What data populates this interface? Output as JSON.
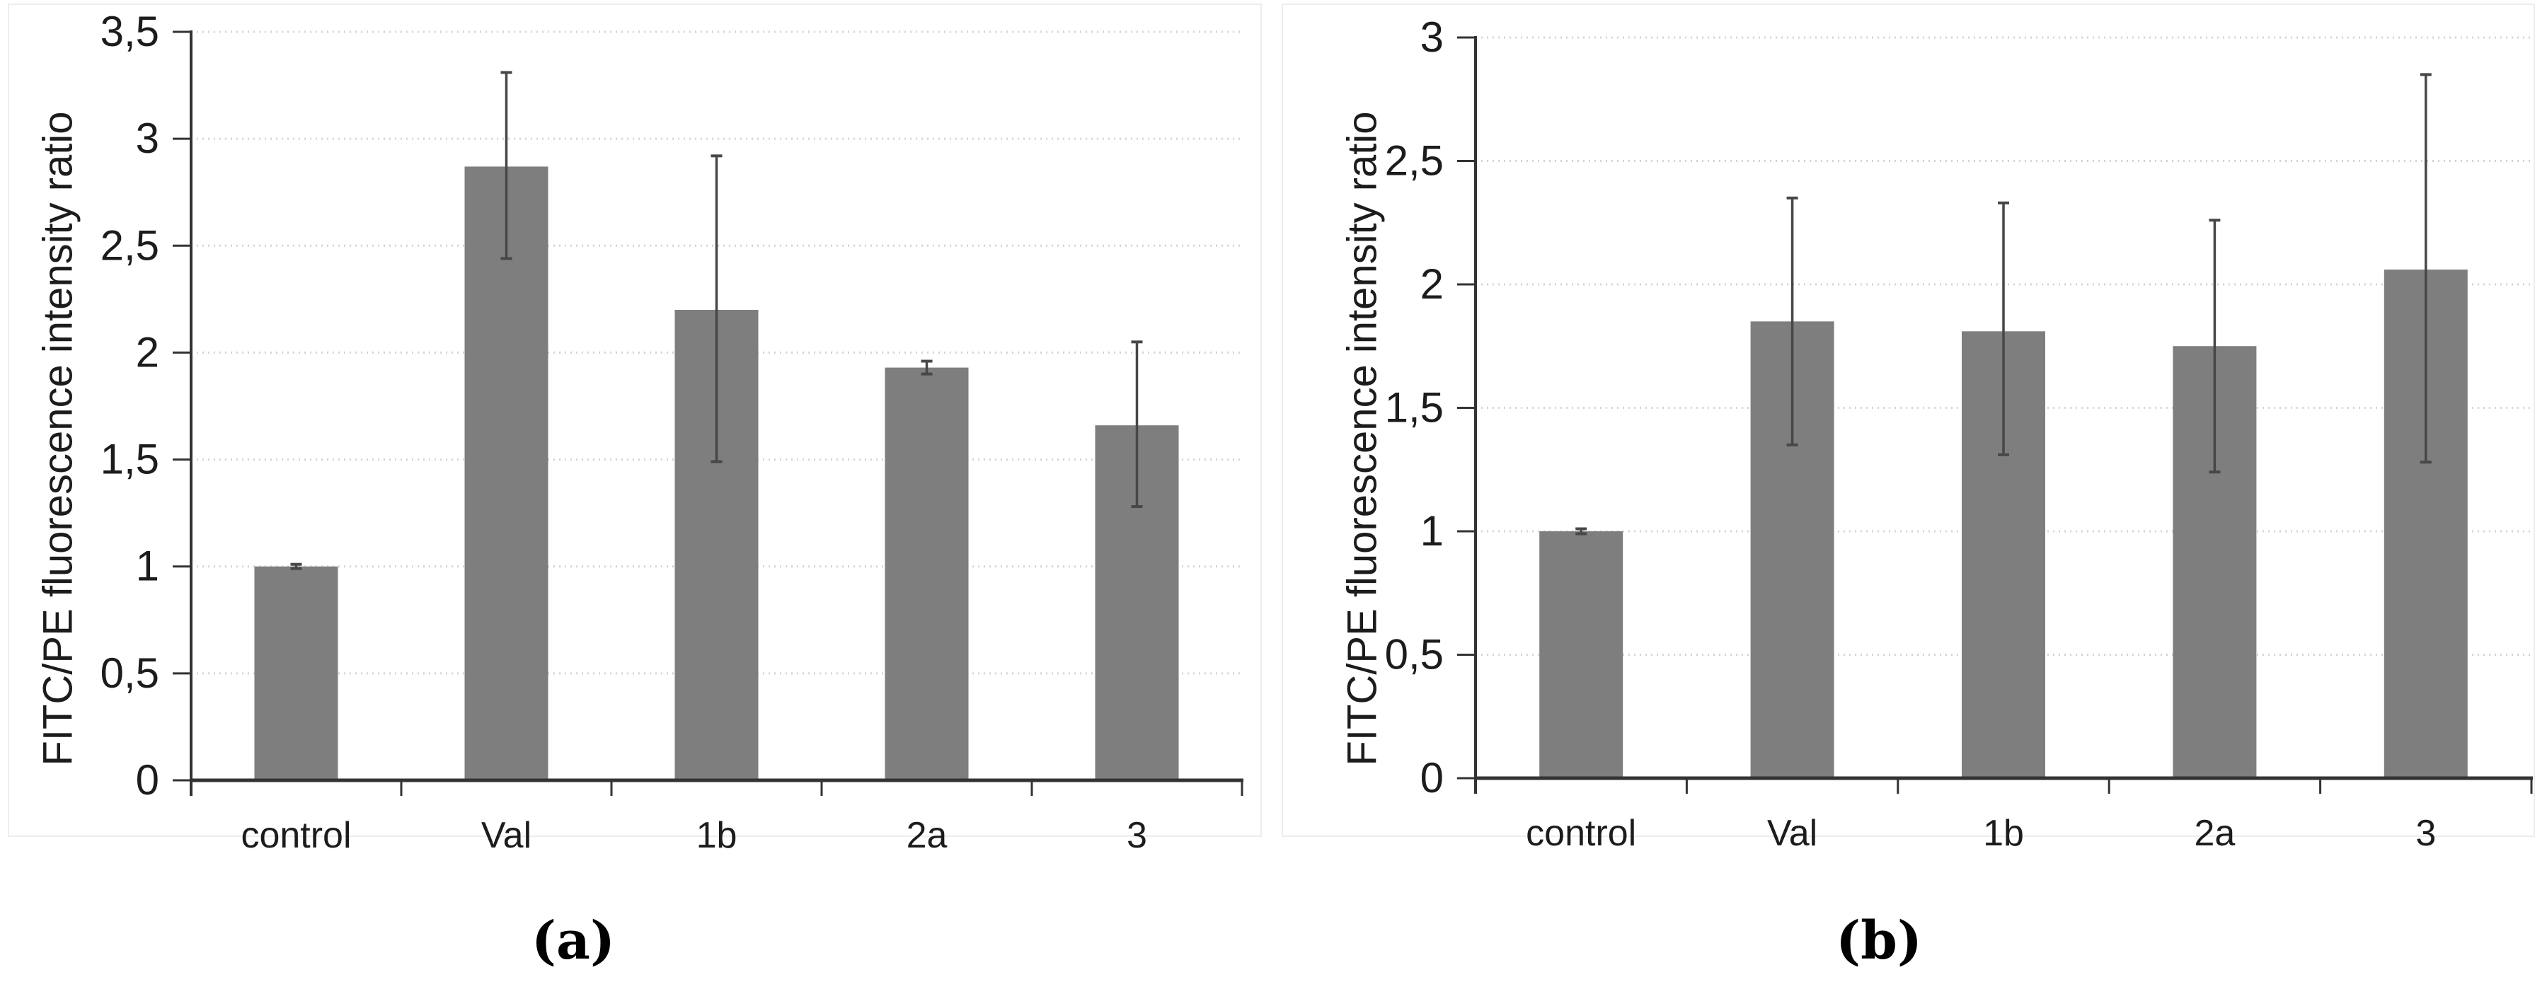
{
  "figure": {
    "background": "#ffffff"
  },
  "chart_data": [
    {
      "type": "bar",
      "panel_label": "(a)",
      "title": "",
      "xlabel": "",
      "ylabel": "FITC/PE fluorescence intensity ratio",
      "categories": [
        "control",
        "Val",
        "1b",
        "2a",
        "3"
      ],
      "values": [
        1.0,
        2.87,
        2.2,
        1.93,
        1.66
      ],
      "error_low": [
        0.01,
        0.43,
        0.71,
        0.03,
        0.38
      ],
      "error_high": [
        0.01,
        0.44,
        0.72,
        0.03,
        0.39
      ],
      "ylim": [
        0,
        3.5
      ],
      "ytick_step": 0.5,
      "ytick_labels": [
        "0",
        "0,5",
        "1",
        "1,5",
        "2",
        "2,5",
        "3",
        "3,5"
      ],
      "decimal_separator": ",",
      "grid": "horizontal-dotted",
      "legend": "none",
      "bar_color": "#7e7e7e",
      "error_color": "#474747",
      "grid_color": "#d4d4d4",
      "axis_color": "#333333",
      "text_color": "#1c1c1c"
    },
    {
      "type": "bar",
      "panel_label": "(b)",
      "title": "",
      "xlabel": "",
      "ylabel": "FITC/PE fluorescence intensity ratio",
      "categories": [
        "control",
        "Val",
        "1b",
        "2a",
        "3"
      ],
      "values": [
        1.0,
        1.85,
        1.81,
        1.75,
        2.06
      ],
      "error_low": [
        0.01,
        0.5,
        0.5,
        0.51,
        0.78
      ],
      "error_high": [
        0.01,
        0.5,
        0.52,
        0.51,
        0.79
      ],
      "ylim": [
        0,
        3
      ],
      "ytick_step": 0.5,
      "ytick_labels": [
        "0",
        "0,5",
        "1",
        "1,5",
        "2",
        "2,5",
        "3"
      ],
      "decimal_separator": ",",
      "grid": "horizontal-dotted",
      "legend": "none",
      "bar_color": "#7e7e7e",
      "error_color": "#474747",
      "grid_color": "#d4d4d4",
      "axis_color": "#333333",
      "text_color": "#1c1c1c"
    }
  ]
}
